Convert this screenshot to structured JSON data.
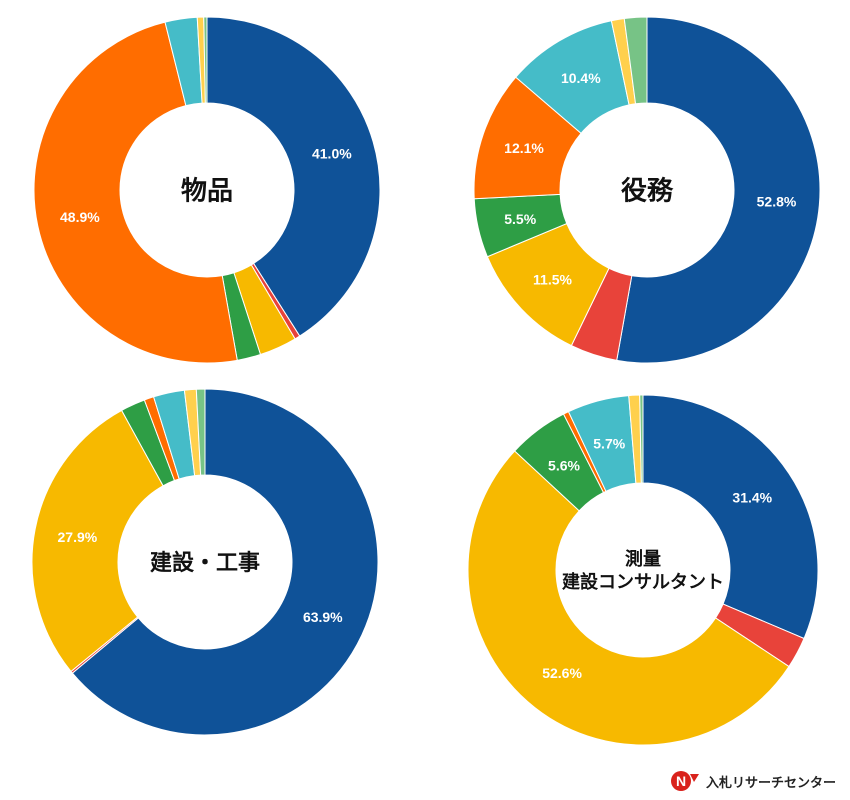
{
  "chart_data": [
    {
      "type": "pie",
      "title_lines": [
        "物品"
      ],
      "slices": [
        {
          "value": 41.0,
          "label": "41.0%",
          "color": "#0f5298"
        },
        {
          "value": 0.5,
          "label": "",
          "color": "#e8433a"
        },
        {
          "value": 3.5,
          "label": "",
          "color": "#f7b900"
        },
        {
          "value": 2.2,
          "label": "",
          "color": "#2e9e45"
        },
        {
          "value": 48.9,
          "label": "48.9%",
          "color": "#ff6d00"
        },
        {
          "value": 3.0,
          "label": "",
          "color": "#45bcc8"
        },
        {
          "value": 0.6,
          "label": "",
          "color": "#ffd04d"
        },
        {
          "value": 0.3,
          "label": "",
          "color": "#77c386"
        }
      ]
    },
    {
      "type": "pie",
      "title_lines": [
        "役務"
      ],
      "slices": [
        {
          "value": 52.8,
          "label": "52.8%",
          "color": "#0f5298"
        },
        {
          "value": 4.4,
          "label": "",
          "color": "#e8433a"
        },
        {
          "value": 11.5,
          "label": "11.5%",
          "color": "#f7b900"
        },
        {
          "value": 5.5,
          "label": "5.5%",
          "color": "#2e9e45"
        },
        {
          "value": 12.1,
          "label": "12.1%",
          "color": "#ff6d00"
        },
        {
          "value": 10.4,
          "label": "10.4%",
          "color": "#45bcc8"
        },
        {
          "value": 1.2,
          "label": "",
          "color": "#ffd04d"
        },
        {
          "value": 2.1,
          "label": "",
          "color": "#77c386"
        }
      ]
    },
    {
      "type": "pie",
      "title_lines": [
        "建設・工事"
      ],
      "slices": [
        {
          "value": 63.9,
          "label": "63.9%",
          "color": "#0f5298"
        },
        {
          "value": 0.2,
          "label": "",
          "color": "#e8433a"
        },
        {
          "value": 27.9,
          "label": "27.9%",
          "color": "#f7b900"
        },
        {
          "value": 2.3,
          "label": "",
          "color": "#2e9e45"
        },
        {
          "value": 0.9,
          "label": "",
          "color": "#ff6d00"
        },
        {
          "value": 2.9,
          "label": "",
          "color": "#45bcc8"
        },
        {
          "value": 1.1,
          "label": "",
          "color": "#ffd04d"
        },
        {
          "value": 0.8,
          "label": "",
          "color": "#77c386"
        }
      ]
    },
    {
      "type": "pie",
      "title_lines": [
        "測量",
        "建設コンサルタント"
      ],
      "slices": [
        {
          "value": 31.4,
          "label": "31.4%",
          "color": "#0f5298"
        },
        {
          "value": 2.9,
          "label": "",
          "color": "#e8433a"
        },
        {
          "value": 52.6,
          "label": "52.6%",
          "color": "#f7b900"
        },
        {
          "value": 5.6,
          "label": "5.6%",
          "color": "#2e9e45"
        },
        {
          "value": 0.5,
          "label": "",
          "color": "#ff6d00"
        },
        {
          "value": 5.7,
          "label": "5.7%",
          "color": "#45bcc8"
        },
        {
          "value": 1.0,
          "label": "",
          "color": "#ffd04d"
        },
        {
          "value": 0.3,
          "label": "",
          "color": "#77c386"
        }
      ]
    }
  ],
  "logo": {
    "text": "入札リサーチセンター",
    "mark_text": "N",
    "mark_color": "#d9221c"
  }
}
